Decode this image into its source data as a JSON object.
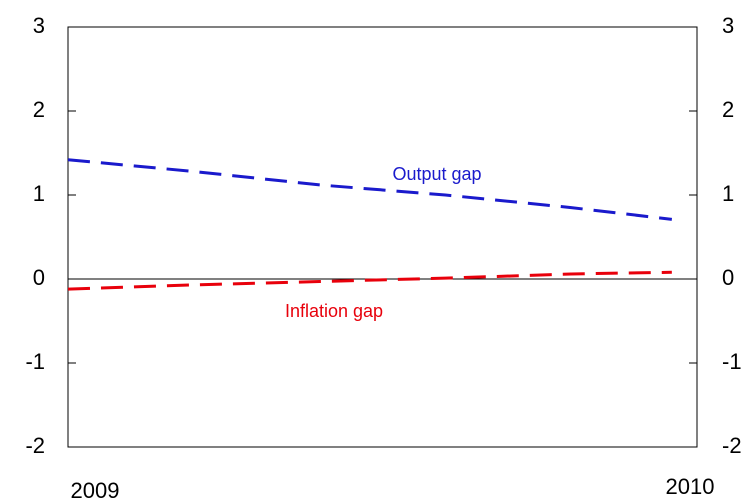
{
  "chart_data": {
    "type": "line",
    "x": [
      2009,
      2009.2,
      2009.4,
      2009.6,
      2009.8,
      2009.96
    ],
    "series": [
      {
        "name": "Output gap",
        "color": "#1a1acc",
        "values": [
          1.42,
          1.28,
          1.12,
          1.0,
          0.85,
          0.71
        ]
      },
      {
        "name": "Inflation gap",
        "color": "#e8000b",
        "values": [
          -0.12,
          -0.07,
          -0.03,
          0.01,
          0.06,
          0.08
        ]
      }
    ],
    "xlim": [
      2009,
      2010
    ],
    "xticks": [
      2009,
      2010
    ],
    "ylim": [
      -2,
      3
    ],
    "yticks": [
      -2,
      -1,
      0,
      1,
      2,
      3
    ],
    "y2lim": [
      -2,
      3
    ],
    "y2ticks": [
      -2,
      -1,
      0,
      1,
      2,
      3
    ],
    "line_style": "dashed"
  }
}
